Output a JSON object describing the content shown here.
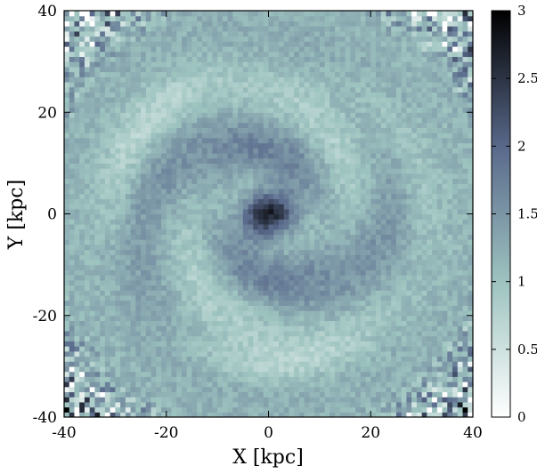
{
  "chart_data": {
    "type": "heatmap",
    "title": "",
    "xlabel": "X [kpc]",
    "ylabel": "Y [kpc]",
    "xlim": [
      -40,
      40
    ],
    "ylim": [
      -40,
      40
    ],
    "xticks": [
      "-40",
      "-20",
      "0",
      "20",
      "40"
    ],
    "yticks": [
      "-40",
      "-20",
      "0",
      "20",
      "40"
    ],
    "colorbar": {
      "range": [
        0,
        3
      ],
      "ticks": [
        "0",
        "0.5",
        "1",
        "1.5",
        "2",
        "2.5",
        "3"
      ],
      "colormap": [
        "#ffffff",
        "#9ec4c0",
        "#5a6a8c",
        "#000000"
      ]
    },
    "grid": false,
    "description_values": {
      "center": [
        0,
        0
      ],
      "center_value": 2.5,
      "background_value": 1.2,
      "arm_values": 1.9,
      "outer_corner_values": 1.0
    }
  }
}
